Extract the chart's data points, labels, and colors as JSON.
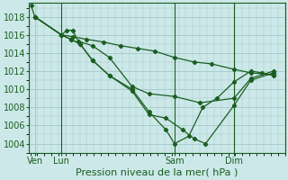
{
  "title": "Pression niveau de la mer( hPa )",
  "bg_color": "#cce8e8",
  "plot_bg_color": "#cce8e8",
  "grid_color": "#aacccc",
  "line_color": "#1a5e20",
  "ylim": [
    1003.0,
    1019.5
  ],
  "yticks": [
    1004,
    1006,
    1008,
    1010,
    1012,
    1014,
    1016,
    1018
  ],
  "xtick_labels": [
    "Ven",
    "Lun",
    "Sam",
    "Dim"
  ],
  "xtick_positions": [
    0.08,
    0.55,
    2.55,
    3.6
  ],
  "vlines": [
    0.55,
    2.55,
    3.6
  ],
  "series": [
    {
      "x": [
        0.02,
        0.08,
        0.55,
        0.75,
        1.0,
        1.3,
        1.6,
        1.9,
        2.2,
        2.55,
        2.9,
        3.2,
        3.6,
        3.9,
        4.3
      ],
      "y": [
        1019.2,
        1018.0,
        1016.0,
        1015.8,
        1015.5,
        1015.2,
        1014.8,
        1014.5,
        1014.2,
        1013.5,
        1013.0,
        1012.8,
        1012.2,
        1011.8,
        1011.6
      ]
    },
    {
      "x": [
        0.08,
        0.55,
        0.65,
        0.75,
        0.85,
        1.1,
        1.4,
        1.8,
        2.1,
        2.55,
        3.0,
        3.6,
        3.9,
        4.3
      ],
      "y": [
        1018.0,
        1016.0,
        1016.5,
        1016.5,
        1015.3,
        1014.8,
        1013.5,
        1010.3,
        1009.5,
        1009.2,
        1008.5,
        1009.0,
        1011.2,
        1012.0
      ]
    },
    {
      "x": [
        0.08,
        0.55,
        0.72,
        0.88,
        1.1,
        1.4,
        1.8,
        2.1,
        2.4,
        2.55,
        2.8,
        3.05,
        3.3,
        3.6,
        3.9,
        4.1,
        4.3
      ],
      "y": [
        1018.0,
        1016.0,
        1015.5,
        1015.0,
        1013.2,
        1011.5,
        1010.0,
        1007.5,
        1005.5,
        1004.0,
        1004.8,
        1008.0,
        1009.0,
        1010.8,
        1012.0,
        1011.8,
        1011.5
      ]
    },
    {
      "x": [
        0.08,
        0.55,
        0.72,
        0.88,
        1.1,
        1.4,
        1.8,
        2.1,
        2.4,
        2.7,
        2.9,
        3.1,
        3.6,
        3.9,
        4.3
      ],
      "y": [
        1018.0,
        1016.0,
        1015.5,
        1015.0,
        1013.2,
        1011.5,
        1009.8,
        1007.2,
        1006.8,
        1005.5,
        1004.5,
        1004.0,
        1008.2,
        1011.0,
        1011.8
      ]
    }
  ],
  "xlabel_fontsize": 8,
  "ytick_fontsize": 7,
  "xtick_fontsize": 7
}
